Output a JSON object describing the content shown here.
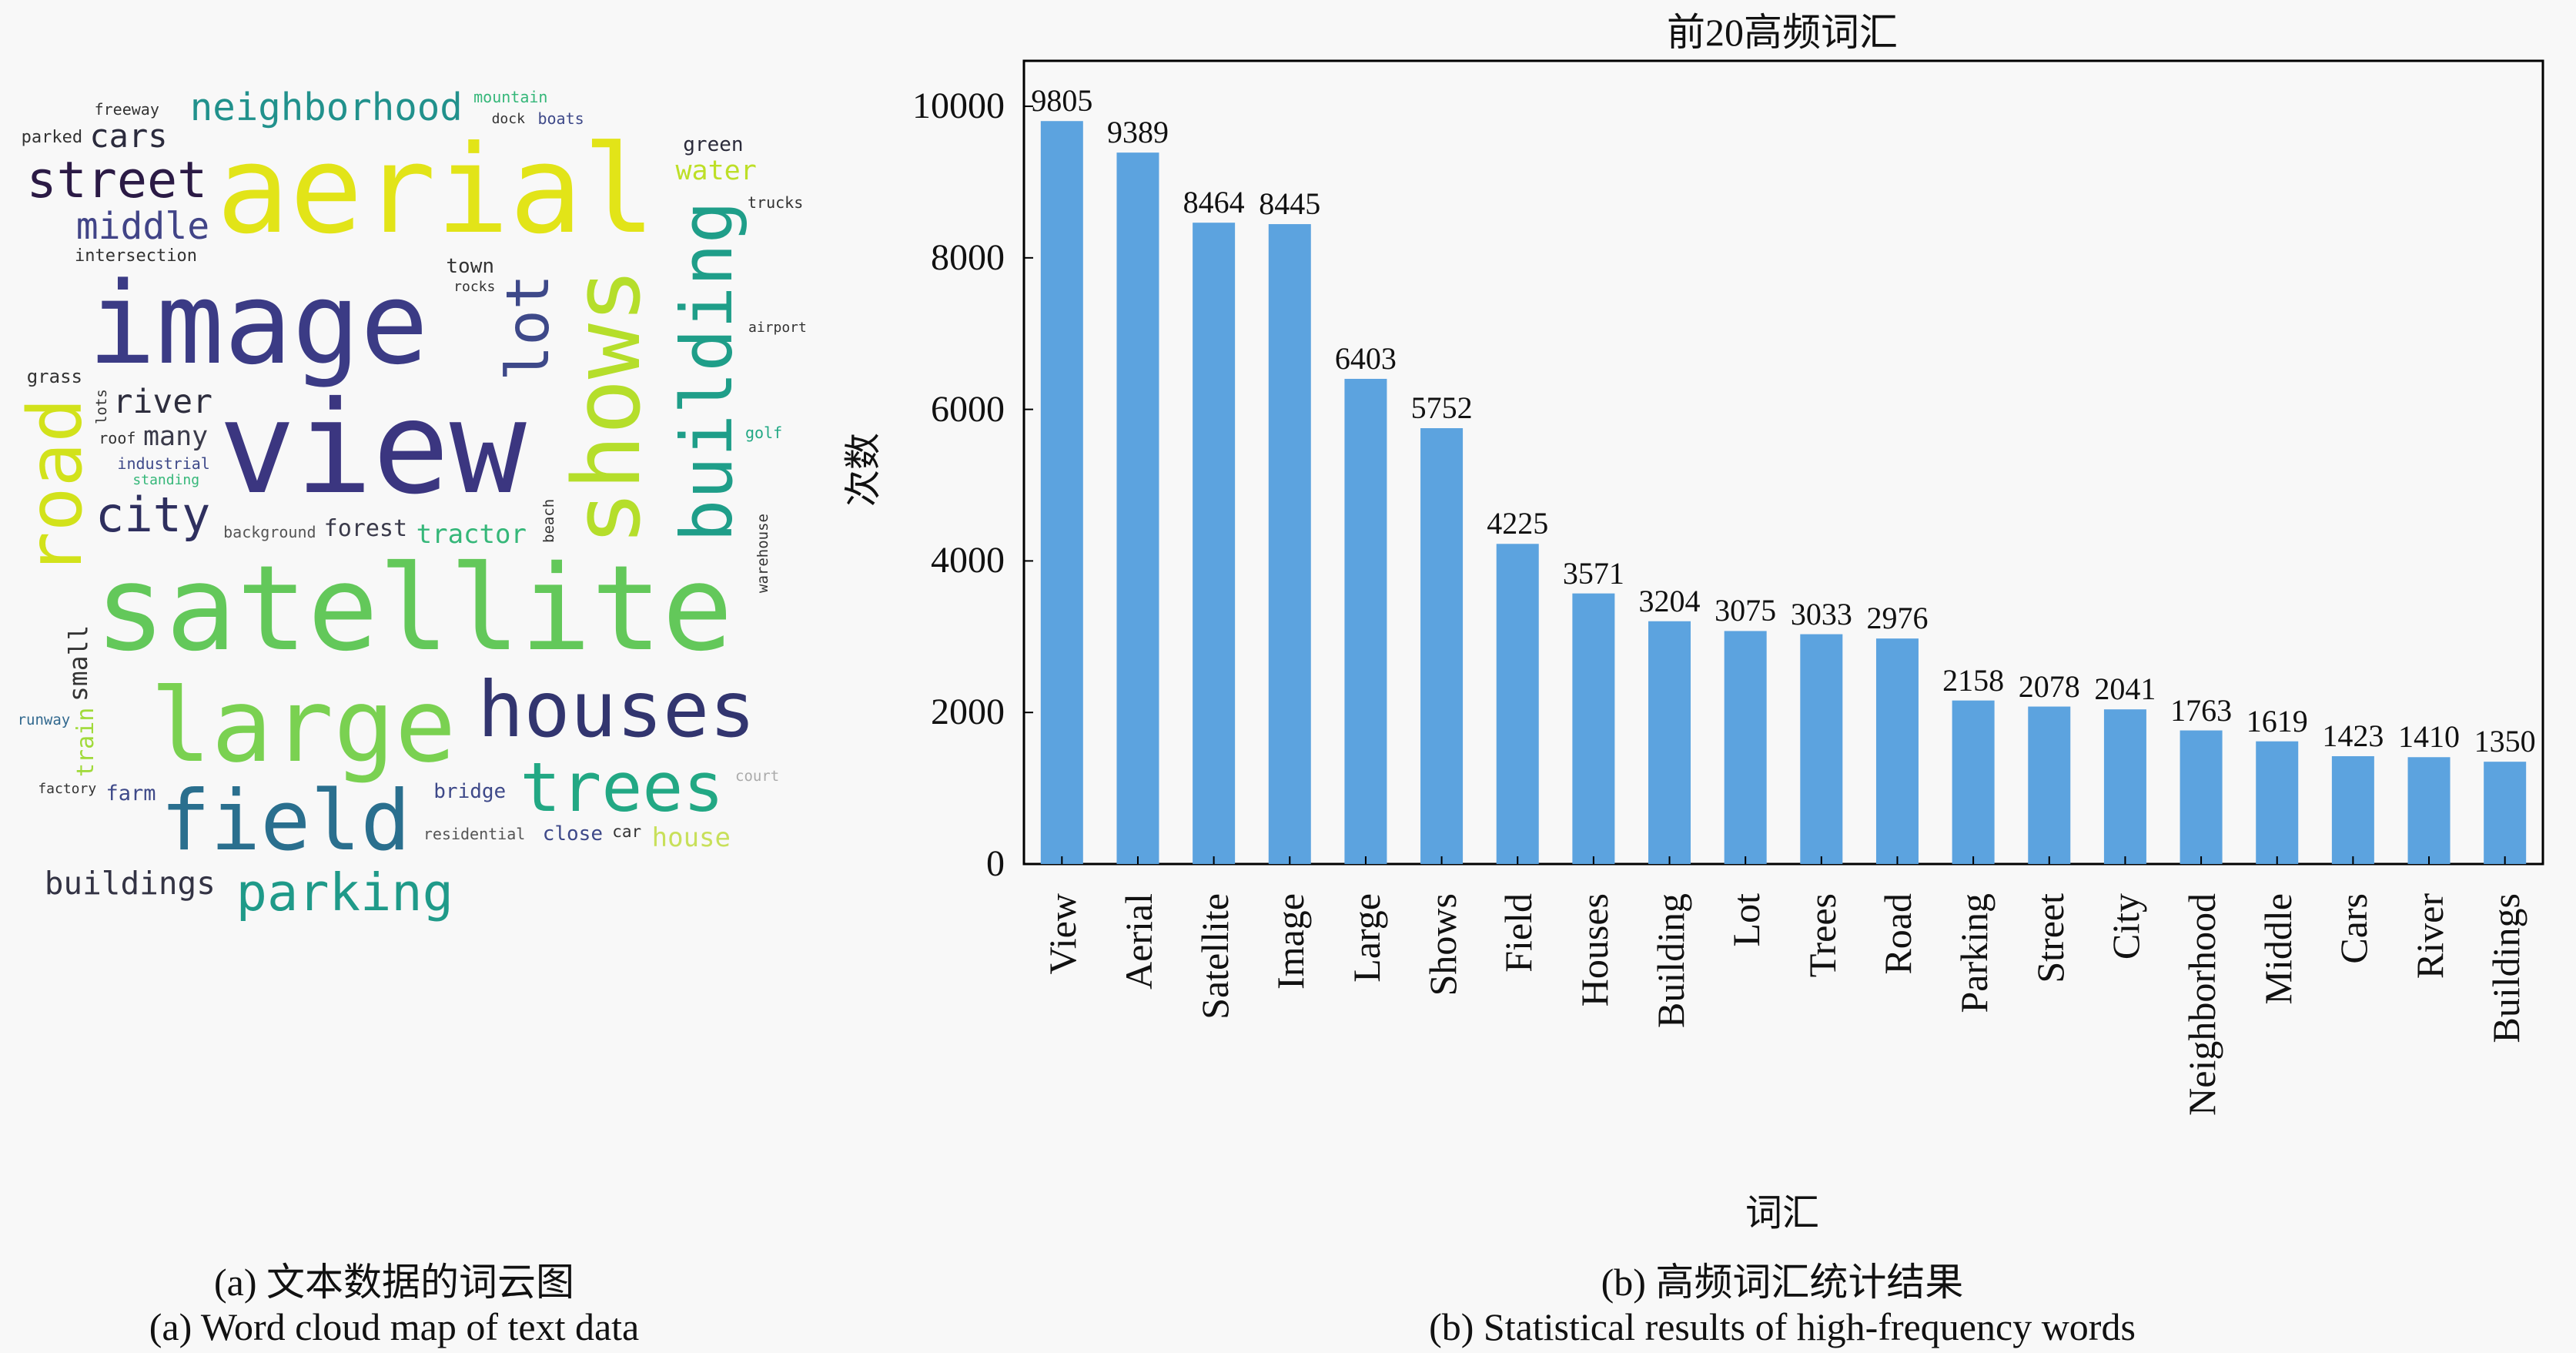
{
  "wordcloud": {
    "caption_cn": "(a) 文本数据的词云图",
    "caption_en": "(a) Word cloud map of text data",
    "words": [
      {
        "text": "aerial",
        "color": "#e2e418"
      },
      {
        "text": "image",
        "color": "#3b3b85"
      },
      {
        "text": "view",
        "color": "#3b3680"
      },
      {
        "text": "satellite",
        "color": "#63c85a"
      },
      {
        "text": "large",
        "color": "#7ad151"
      },
      {
        "text": "houses",
        "color": "#32356f"
      },
      {
        "text": "trees",
        "color": "#22a884"
      },
      {
        "text": "field",
        "color": "#2a6f8e"
      },
      {
        "text": "city",
        "color": "#2e2f5e"
      },
      {
        "text": "parking",
        "color": "#1f9a89"
      },
      {
        "text": "street",
        "color": "#2b1a45"
      },
      {
        "text": "neighborhood",
        "color": "#21918c"
      },
      {
        "text": "middle",
        "color": "#414487"
      },
      {
        "text": "buildings",
        "color": "#333344"
      },
      {
        "text": "cars",
        "color": "#2b2b3d"
      },
      {
        "text": "river",
        "color": "#2e2e3e"
      },
      {
        "text": "many",
        "color": "#3a3a4a"
      },
      {
        "text": "tractor",
        "color": "#35b779"
      },
      {
        "text": "water",
        "color": "#bddf26"
      },
      {
        "text": "house",
        "color": "#c8e05a"
      },
      {
        "text": "forest",
        "color": "#3a3a4a"
      },
      {
        "text": "green",
        "color": "#2b2b3b"
      },
      {
        "text": "bridge",
        "color": "#3e4989"
      },
      {
        "text": "close",
        "color": "#3e4989"
      },
      {
        "text": "farm",
        "color": "#3e4989"
      },
      {
        "text": "freeway",
        "color": "#333"
      },
      {
        "text": "parked",
        "color": "#333"
      },
      {
        "text": "town",
        "color": "#333"
      },
      {
        "text": "trucks",
        "color": "#333"
      },
      {
        "text": "boats",
        "color": "#3e4989"
      },
      {
        "text": "intersection",
        "color": "#333"
      },
      {
        "text": "grass",
        "color": "#333"
      },
      {
        "text": "airport",
        "color": "#333"
      },
      {
        "text": "industrial",
        "color": "#3e4989"
      },
      {
        "text": "residential",
        "color": "#555"
      },
      {
        "text": "background",
        "color": "#555"
      },
      {
        "text": "runway",
        "color": "#31688e"
      },
      {
        "text": "mountain",
        "color": "#35b779"
      },
      {
        "text": "golf",
        "color": "#22a884"
      },
      {
        "text": "standing",
        "color": "#35b779"
      },
      {
        "text": "factory",
        "color": "#333"
      },
      {
        "text": "dock",
        "color": "#333"
      },
      {
        "text": "rocks",
        "color": "#333"
      },
      {
        "text": "roof",
        "color": "#333"
      },
      {
        "text": "car",
        "color": "#333"
      },
      {
        "text": "court",
        "color": "#aaa"
      },
      {
        "text": "lot",
        "color": "#3e4989"
      },
      {
        "text": "shows",
        "color": "#b5de2b"
      },
      {
        "text": "building",
        "color": "#1f9e89"
      },
      {
        "text": "road",
        "color": "#d2e21b"
      },
      {
        "text": "small",
        "color": "#333"
      },
      {
        "text": "train",
        "color": "#a0da39"
      },
      {
        "text": "lots",
        "color": "#333"
      },
      {
        "text": "warehouse",
        "color": "#333"
      },
      {
        "text": "beach",
        "color": "#333"
      }
    ]
  },
  "chart_data": {
    "type": "bar",
    "title": "前20高频词汇",
    "xlabel": "词汇",
    "ylabel": "次数",
    "ylim": [
      0,
      10600
    ],
    "yticks": [
      0,
      2000,
      4000,
      6000,
      8000,
      10000
    ],
    "categories": [
      "View",
      "Aerial",
      "Satellite",
      "Image",
      "Large",
      "Shows",
      "Field",
      "Houses",
      "Building",
      "Lot",
      "Trees",
      "Road",
      "Parking",
      "Street",
      "City",
      "Neighborhood",
      "Middle",
      "Cars",
      "River",
      "Buildings"
    ],
    "values": [
      9805,
      9389,
      8464,
      8445,
      6403,
      5752,
      4225,
      3571,
      3204,
      3075,
      3033,
      2976,
      2158,
      2078,
      2041,
      1763,
      1619,
      1423,
      1410,
      1350
    ],
    "bar_color": "#5ca3df",
    "grid": false,
    "caption_cn": "(b) 高频词汇统计结果",
    "caption_en": "(b) Statistical results of high-frequency words"
  }
}
